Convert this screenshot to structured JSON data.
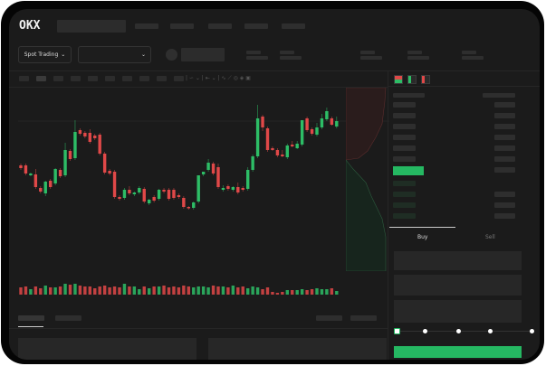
{
  "header": {
    "logo": "OKX"
  },
  "toolbar": {
    "market_type_label": "Spot Trading",
    "chevron": "chevron-down-icon"
  },
  "trade_panel": {
    "tabs": [
      {
        "label": "Buy",
        "active": true
      },
      {
        "label": "Sell",
        "active": false
      }
    ],
    "slider_value_percent": 0
  },
  "colors": {
    "up": "#2dbd66",
    "down": "#e04848",
    "accent": "#25b862",
    "background": "#1b1b1b"
  },
  "chart_data": {
    "type": "candlestick",
    "candles": [
      [
        68,
        70,
        63,
        65
      ],
      [
        68,
        70,
        57,
        59
      ],
      [
        57,
        60,
        56,
        59
      ],
      [
        58,
        64,
        42,
        44
      ],
      [
        43,
        45,
        37,
        39
      ],
      [
        37,
        51,
        34,
        50
      ],
      [
        51,
        53,
        42,
        44
      ],
      [
        48,
        65,
        46,
        64
      ],
      [
        63,
        65,
        54,
        56
      ],
      [
        57,
        93,
        55,
        85
      ],
      [
        84,
        86,
        73,
        75
      ],
      [
        76,
        118,
        74,
        105
      ],
      [
        107,
        109,
        101,
        103
      ],
      [
        104,
        106,
        98,
        100
      ],
      [
        104,
        108,
        92,
        94
      ],
      [
        101,
        103,
        96,
        98
      ],
      [
        102,
        104,
        79,
        81
      ],
      [
        81,
        83,
        58,
        60
      ],
      [
        62,
        64,
        57,
        59
      ],
      [
        61,
        63,
        31,
        33
      ],
      [
        33,
        35,
        29,
        31
      ],
      [
        32,
        43,
        30,
        41
      ],
      [
        41,
        45,
        35,
        37
      ],
      [
        36,
        39,
        34,
        38
      ],
      [
        38,
        45,
        36,
        43
      ],
      [
        42,
        44,
        26,
        28
      ],
      [
        26,
        31,
        24,
        30
      ],
      [
        33,
        35,
        27,
        29
      ],
      [
        31,
        42,
        29,
        41
      ],
      [
        41,
        43,
        37,
        39
      ],
      [
        41,
        43,
        29,
        31
      ],
      [
        41,
        43,
        30,
        32
      ],
      [
        35,
        37,
        31,
        33
      ],
      [
        32,
        34,
        20,
        22
      ],
      [
        22,
        23,
        19,
        21
      ],
      [
        21,
        28,
        19,
        27
      ],
      [
        28,
        57,
        26,
        57
      ],
      [
        58,
        61,
        56,
        61
      ],
      [
        63,
        75,
        61,
        71
      ],
      [
        70,
        72,
        57,
        59
      ],
      [
        66,
        70,
        42,
        44
      ],
      [
        41,
        46,
        39,
        43
      ],
      [
        45,
        47,
        40,
        42
      ],
      [
        41,
        45,
        39,
        44
      ],
      [
        44,
        49,
        36,
        38
      ],
      [
        43,
        45,
        39,
        41
      ],
      [
        42,
        66,
        40,
        63
      ],
      [
        63,
        80,
        61,
        78
      ],
      [
        78,
        135,
        76,
        120
      ],
      [
        122,
        124,
        106,
        110
      ],
      [
        109,
        111,
        83,
        85
      ],
      [
        87,
        89,
        84,
        85
      ],
      [
        85,
        87,
        77,
        79
      ],
      [
        80,
        85,
        77,
        78
      ],
      [
        77,
        92,
        75,
        90
      ],
      [
        91,
        95,
        88,
        89
      ],
      [
        87,
        95,
        86,
        92
      ],
      [
        91,
        118,
        89,
        118
      ],
      [
        120,
        122,
        105,
        107
      ],
      [
        108,
        110,
        101,
        103
      ],
      [
        102,
        115,
        100,
        110
      ],
      [
        110,
        125,
        108,
        120
      ],
      [
        119,
        132,
        117,
        128
      ],
      [
        120,
        122,
        112,
        113
      ],
      [
        111,
        122,
        109,
        117
      ]
    ],
    "volumes": [
      8,
      9,
      6,
      9,
      7,
      10,
      8,
      8,
      9,
      12,
      11,
      12,
      10,
      9,
      9,
      7,
      9,
      10,
      8,
      9,
      8,
      12,
      9,
      9,
      6,
      9,
      7,
      9,
      9,
      10,
      8,
      9,
      8,
      10,
      9,
      8,
      9,
      9,
      8,
      10,
      9,
      9,
      8,
      10,
      8,
      9,
      7,
      9,
      8,
      6,
      8,
      3,
      2,
      3,
      5,
      5,
      5,
      6,
      5,
      6,
      7,
      6,
      6,
      7,
      4
    ],
    "grid": false,
    "legend": "none"
  }
}
